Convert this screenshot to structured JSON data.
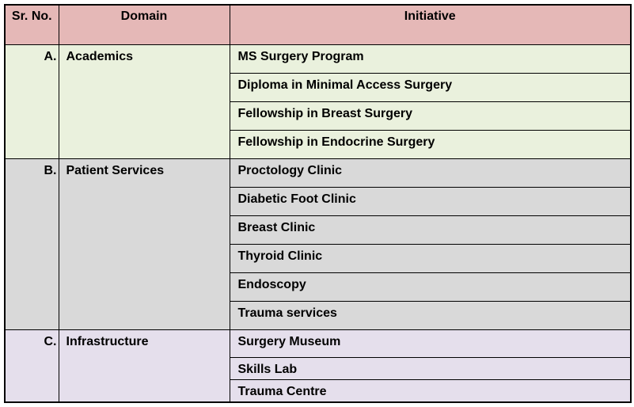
{
  "table": {
    "headers": {
      "sr_no": "Sr. No.",
      "domain": "Domain",
      "initiative": "Initiative"
    },
    "sections": [
      {
        "sr": "A.",
        "domain": "Academics",
        "initiatives": [
          "MS Surgery Program",
          "Diploma in Minimal Access Surgery",
          "Fellowship in Breast Surgery",
          "Fellowship in Endocrine Surgery"
        ]
      },
      {
        "sr": "B.",
        "domain": "Patient Services",
        "initiatives": [
          "Proctology Clinic",
          "Diabetic Foot Clinic",
          "Breast Clinic",
          "Thyroid Clinic",
          "Endoscopy",
          "Trauma services"
        ]
      },
      {
        "sr": "C.",
        "domain": "Infrastructure",
        "initiatives": [
          "Surgery Museum",
          "Skills Lab",
          "Trauma Centre"
        ]
      }
    ],
    "colors": {
      "header_bg": "#e5b8b7",
      "section_a_bg": "#eaf1dd",
      "section_b_bg": "#d9d9d9",
      "section_c_bg": "#e5dfec",
      "border": "#000000",
      "text": "#000000"
    }
  }
}
